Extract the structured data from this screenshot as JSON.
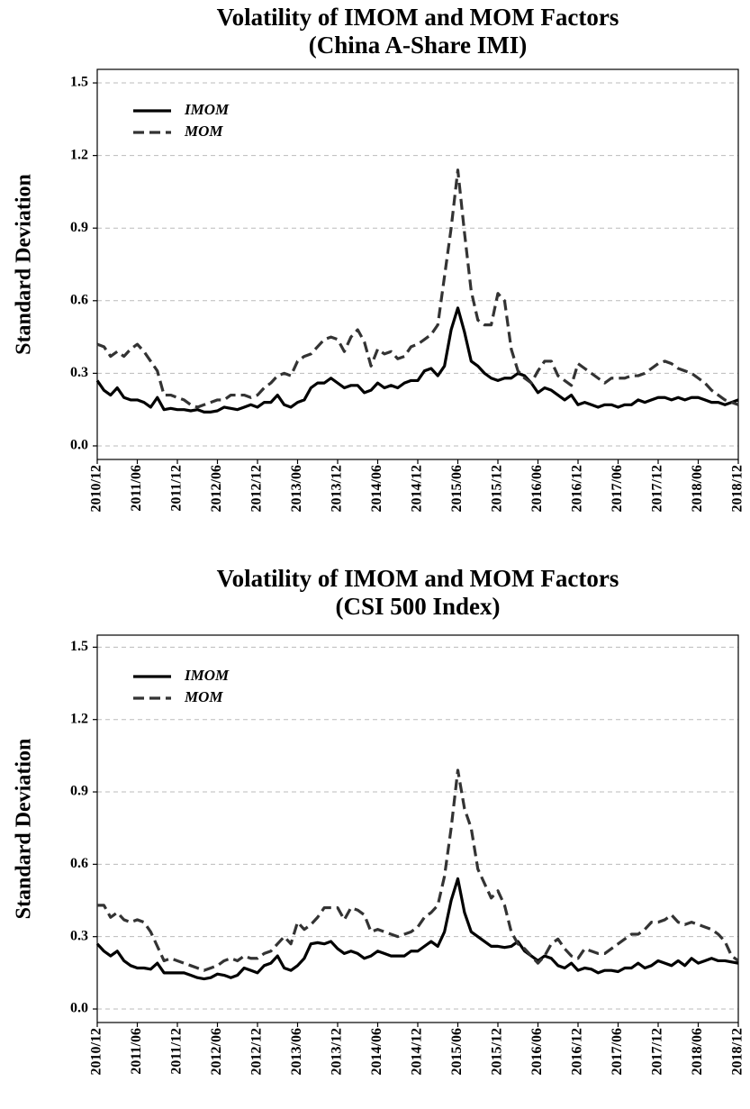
{
  "chart_data": [
    {
      "type": "line",
      "title": "Volatility of IMOM and MOM Factors",
      "subtitle": "(China A-Share IMI)",
      "ylabel": "Standard Deviation",
      "categories": [
        "2010/12",
        null,
        null,
        null,
        null,
        null,
        "2011/06",
        null,
        null,
        null,
        null,
        null,
        "2011/12",
        null,
        null,
        null,
        null,
        null,
        "2012/06",
        null,
        null,
        null,
        null,
        null,
        "2012/12",
        null,
        null,
        null,
        null,
        null,
        "2013/06",
        null,
        null,
        null,
        null,
        null,
        "2013/12",
        null,
        null,
        null,
        null,
        null,
        "2014/06",
        null,
        null,
        null,
        null,
        null,
        "2014/12",
        null,
        null,
        null,
        null,
        null,
        "2015/06",
        null,
        null,
        null,
        null,
        null,
        "2015/12",
        null,
        null,
        null,
        null,
        null,
        "2016/06",
        null,
        null,
        null,
        null,
        null,
        "2016/12",
        null,
        null,
        null,
        null,
        null,
        "2017/06",
        null,
        null,
        null,
        null,
        null,
        "2017/12",
        null,
        null,
        null,
        null,
        null,
        "2018/06",
        null,
        null,
        null,
        null,
        null,
        "2018/12"
      ],
      "series": [
        {
          "name": "IMOM",
          "color": "#000000",
          "linestyle": "solid",
          "values": [
            0.27,
            0.23,
            0.21,
            0.24,
            0.2,
            0.19,
            0.19,
            0.18,
            0.16,
            0.2,
            0.15,
            0.155,
            0.15,
            0.15,
            0.145,
            0.15,
            0.14,
            0.14,
            0.145,
            0.16,
            0.155,
            0.15,
            0.16,
            0.17,
            0.16,
            0.18,
            0.18,
            0.21,
            0.17,
            0.16,
            0.18,
            0.19,
            0.24,
            0.26,
            0.26,
            0.28,
            0.26,
            0.24,
            0.25,
            0.25,
            0.22,
            0.23,
            0.26,
            0.24,
            0.25,
            0.24,
            0.26,
            0.27,
            0.27,
            0.31,
            0.32,
            0.29,
            0.33,
            0.48,
            0.57,
            0.47,
            0.35,
            0.33,
            0.3,
            0.28,
            0.27,
            0.28,
            0.28,
            0.3,
            0.29,
            0.26,
            0.22,
            0.24,
            0.23,
            0.21,
            0.19,
            0.21,
            0.17,
            0.18,
            0.17,
            0.16,
            0.17,
            0.17,
            0.16,
            0.17,
            0.17,
            0.19,
            0.18,
            0.19,
            0.2,
            0.2,
            0.19,
            0.2,
            0.19,
            0.2,
            0.2,
            0.19,
            0.18,
            0.18,
            0.17,
            0.18,
            0.19
          ]
        },
        {
          "name": "MOM",
          "color": "#333333",
          "linestyle": "dashed",
          "values": [
            0.42,
            0.41,
            0.37,
            0.39,
            0.37,
            0.4,
            0.42,
            0.39,
            0.35,
            0.31,
            0.21,
            0.21,
            0.2,
            0.19,
            0.17,
            0.16,
            0.17,
            0.18,
            0.19,
            0.19,
            0.21,
            0.21,
            0.21,
            0.2,
            0.21,
            0.24,
            0.26,
            0.29,
            0.3,
            0.29,
            0.35,
            0.37,
            0.38,
            0.41,
            0.44,
            0.45,
            0.44,
            0.39,
            0.45,
            0.48,
            0.43,
            0.33,
            0.4,
            0.38,
            0.39,
            0.36,
            0.37,
            0.41,
            0.42,
            0.44,
            0.46,
            0.5,
            0.7,
            0.9,
            1.14,
            0.88,
            0.64,
            0.52,
            0.5,
            0.5,
            0.63,
            0.6,
            0.4,
            0.31,
            0.28,
            0.26,
            0.31,
            0.35,
            0.35,
            0.29,
            0.27,
            0.25,
            0.34,
            0.32,
            0.3,
            0.28,
            0.26,
            0.28,
            0.28,
            0.28,
            0.29,
            0.29,
            0.3,
            0.32,
            0.34,
            0.35,
            0.34,
            0.32,
            0.31,
            0.3,
            0.28,
            0.26,
            0.23,
            0.21,
            0.19,
            0.18,
            0.17
          ]
        }
      ],
      "ylim": [
        -0.056,
        1.556
      ],
      "yticks": [
        {
          "value": 0,
          "label": "0.0"
        },
        0.3,
        0.6,
        0.9,
        1.2,
        1.5
      ],
      "grid": true,
      "legend": "upper left"
    },
    {
      "type": "line",
      "title": "Volatility of IMOM and MOM Factors",
      "subtitle": "(CSI 500 Index)",
      "ylabel": "Standard Deviation",
      "categories": [
        "2010/12",
        null,
        null,
        null,
        null,
        null,
        "2011/06",
        null,
        null,
        null,
        null,
        null,
        "2011/12",
        null,
        null,
        null,
        null,
        null,
        "2012/06",
        null,
        null,
        null,
        null,
        null,
        "2012/12",
        null,
        null,
        null,
        null,
        null,
        "2013/06",
        null,
        null,
        null,
        null,
        null,
        "2013/12",
        null,
        null,
        null,
        null,
        null,
        "2014/06",
        null,
        null,
        null,
        null,
        null,
        "2014/12",
        null,
        null,
        null,
        null,
        null,
        "2015/06",
        null,
        null,
        null,
        null,
        null,
        "2015/12",
        null,
        null,
        null,
        null,
        null,
        "2016/06",
        null,
        null,
        null,
        null,
        null,
        "2016/12",
        null,
        null,
        null,
        null,
        null,
        "2017/06",
        null,
        null,
        null,
        null,
        null,
        "2017/12",
        null,
        null,
        null,
        null,
        null,
        "2018/06",
        null,
        null,
        null,
        null,
        null,
        "2018/12"
      ],
      "series": [
        {
          "name": "IMOM",
          "color": "#000000",
          "linestyle": "solid",
          "values": [
            0.27,
            0.24,
            0.22,
            0.24,
            0.2,
            0.18,
            0.17,
            0.17,
            0.165,
            0.19,
            0.15,
            0.15,
            0.15,
            0.15,
            0.14,
            0.13,
            0.125,
            0.13,
            0.145,
            0.14,
            0.13,
            0.14,
            0.17,
            0.16,
            0.15,
            0.18,
            0.19,
            0.22,
            0.17,
            0.16,
            0.18,
            0.21,
            0.27,
            0.275,
            0.27,
            0.28,
            0.25,
            0.23,
            0.24,
            0.23,
            0.21,
            0.22,
            0.24,
            0.23,
            0.22,
            0.22,
            0.22,
            0.24,
            0.24,
            0.26,
            0.28,
            0.26,
            0.32,
            0.45,
            0.54,
            0.4,
            0.32,
            0.3,
            0.28,
            0.26,
            0.26,
            0.255,
            0.26,
            0.28,
            0.24,
            0.22,
            0.2,
            0.22,
            0.21,
            0.18,
            0.17,
            0.19,
            0.16,
            0.17,
            0.165,
            0.15,
            0.16,
            0.16,
            0.155,
            0.17,
            0.17,
            0.19,
            0.17,
            0.18,
            0.2,
            0.19,
            0.18,
            0.2,
            0.18,
            0.21,
            0.19,
            0.2,
            0.21,
            0.2,
            0.2,
            0.195,
            0.19
          ]
        },
        {
          "name": "MOM",
          "color": "#333333",
          "linestyle": "dashed",
          "values": [
            0.43,
            0.43,
            0.38,
            0.4,
            0.37,
            0.36,
            0.37,
            0.36,
            0.32,
            0.26,
            0.2,
            0.21,
            0.2,
            0.19,
            0.18,
            0.17,
            0.16,
            0.17,
            0.18,
            0.2,
            0.21,
            0.2,
            0.22,
            0.21,
            0.21,
            0.23,
            0.24,
            0.27,
            0.3,
            0.27,
            0.36,
            0.33,
            0.35,
            0.38,
            0.42,
            0.42,
            0.42,
            0.37,
            0.42,
            0.41,
            0.39,
            0.32,
            0.33,
            0.32,
            0.31,
            0.3,
            0.31,
            0.32,
            0.34,
            0.38,
            0.4,
            0.43,
            0.55,
            0.75,
            0.99,
            0.83,
            0.75,
            0.58,
            0.52,
            0.46,
            0.49,
            0.43,
            0.32,
            0.27,
            0.25,
            0.22,
            0.19,
            0.22,
            0.27,
            0.29,
            0.25,
            0.22,
            0.21,
            0.25,
            0.24,
            0.23,
            0.23,
            0.25,
            0.27,
            0.29,
            0.31,
            0.31,
            0.33,
            0.36,
            0.36,
            0.37,
            0.39,
            0.36,
            0.35,
            0.36,
            0.35,
            0.34,
            0.33,
            0.31,
            0.28,
            0.22,
            0.2
          ]
        }
      ],
      "ylim": [
        -0.056,
        1.55
      ],
      "yticks": [
        {
          "value": 0,
          "label": "0.0"
        },
        0.3,
        0.6,
        0.9,
        1.2,
        1.5
      ],
      "grid": true,
      "legend": "upper left"
    }
  ]
}
